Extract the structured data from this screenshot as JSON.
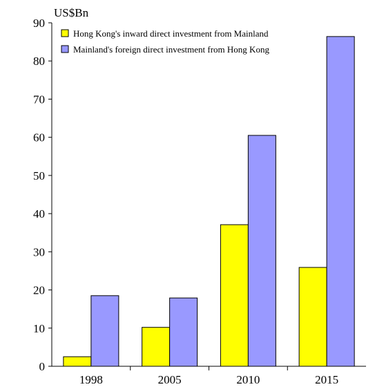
{
  "chart_data": {
    "type": "bar",
    "unit_label": "US$Bn",
    "categories": [
      "1998",
      "2005",
      "2010",
      "2015"
    ],
    "series": [
      {
        "name": "Hong Kong's inward direct investment from Mainland",
        "color": "#ffff00",
        "values": [
          2.5,
          10.2,
          37.1,
          25.9
        ]
      },
      {
        "name": "Mainland's foreign direct investment from Hong Kong",
        "color": "#9999ff",
        "values": [
          18.5,
          17.9,
          60.5,
          86.4
        ]
      }
    ],
    "ylim": [
      0,
      90
    ],
    "yticks": [
      0,
      10,
      20,
      30,
      40,
      50,
      60,
      70,
      80,
      90
    ],
    "legend_position": "top-left",
    "grid": false
  }
}
